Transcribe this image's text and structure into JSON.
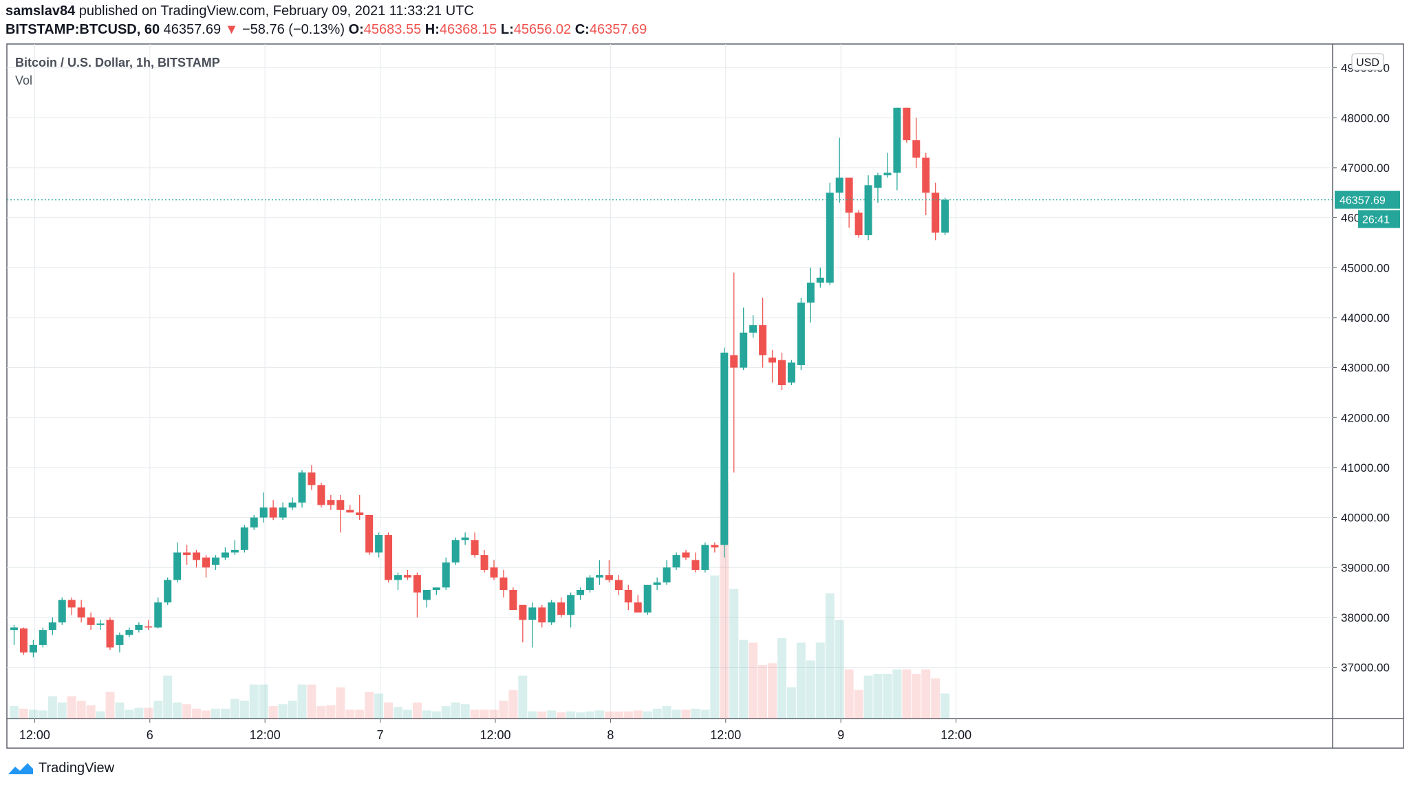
{
  "header": {
    "author": "samslav84",
    "published_text": "published on TradingView.com, February 09, 2021 11:33:21 UTC",
    "symbol": "BITSTAMP:BTCUSD, 60",
    "last": "46357.69",
    "change": "−58.76 (−0.13%)",
    "o_label": "O:",
    "o": "45683.55",
    "h_label": "H:",
    "h": "46368.15",
    "l_label": "L:",
    "l": "45656.02",
    "c_label": "C:",
    "c": "46357.69"
  },
  "legend": {
    "title": "Bitcoin / U.S. Dollar, 1h, BITSTAMP",
    "vol": "Vol"
  },
  "currency": "USD",
  "price_tag": "46357.69",
  "countdown": "26:41",
  "footer": {
    "brand": "TradingView"
  },
  "colors": {
    "up": "#26a69a",
    "down": "#ef5350",
    "grid": "#e6eaed",
    "text": "#131722"
  },
  "chart_data": {
    "type": "candlestick",
    "title": "Bitcoin / U.S. Dollar, 1h, BITSTAMP",
    "y_unit": "USD",
    "y_ticks": [
      37000,
      38000,
      39000,
      40000,
      41000,
      42000,
      43000,
      44000,
      45000,
      46000,
      47000,
      48000,
      49000
    ],
    "ylim": [
      36150,
      49500
    ],
    "x_ticks": [
      {
        "label": "12:00",
        "index": 2
      },
      {
        "label": "6",
        "index": 14
      },
      {
        "label": "12:00",
        "index": 26
      },
      {
        "label": "7",
        "index": 38
      },
      {
        "label": "12:00",
        "index": 50
      },
      {
        "label": "8",
        "index": 62
      },
      {
        "label": "12:00",
        "index": 74
      },
      {
        "label": "9",
        "index": 86
      },
      {
        "label": "12:00",
        "index": 98
      }
    ],
    "last_price": 46357.69,
    "grid": true,
    "candles": [
      {
        "o": 37750,
        "h": 37850,
        "l": 37450,
        "c": 37800
      },
      {
        "o": 37780,
        "h": 37800,
        "l": 37250,
        "c": 37300
      },
      {
        "o": 37300,
        "h": 37550,
        "l": 37200,
        "c": 37450
      },
      {
        "o": 37450,
        "h": 37800,
        "l": 37400,
        "c": 37750
      },
      {
        "o": 37750,
        "h": 38000,
        "l": 37650,
        "c": 37900
      },
      {
        "o": 37900,
        "h": 38400,
        "l": 37850,
        "c": 38350
      },
      {
        "o": 38350,
        "h": 38400,
        "l": 38050,
        "c": 38200
      },
      {
        "o": 38200,
        "h": 38350,
        "l": 37900,
        "c": 38000
      },
      {
        "o": 38000,
        "h": 38100,
        "l": 37750,
        "c": 37850
      },
      {
        "o": 37850,
        "h": 37950,
        "l": 37750,
        "c": 37880
      },
      {
        "o": 37950,
        "h": 38000,
        "l": 37350,
        "c": 37400
      },
      {
        "o": 37450,
        "h": 37700,
        "l": 37300,
        "c": 37650
      },
      {
        "o": 37650,
        "h": 37800,
        "l": 37600,
        "c": 37750
      },
      {
        "o": 37750,
        "h": 37900,
        "l": 37700,
        "c": 37850
      },
      {
        "o": 37820,
        "h": 37950,
        "l": 37750,
        "c": 37800
      },
      {
        "o": 37800,
        "h": 38400,
        "l": 37780,
        "c": 38300
      },
      {
        "o": 38300,
        "h": 38800,
        "l": 38250,
        "c": 38750
      },
      {
        "o": 38750,
        "h": 39500,
        "l": 38700,
        "c": 39300
      },
      {
        "o": 39300,
        "h": 39450,
        "l": 39050,
        "c": 39250
      },
      {
        "o": 39300,
        "h": 39350,
        "l": 39000,
        "c": 39150
      },
      {
        "o": 39200,
        "h": 39250,
        "l": 38800,
        "c": 39000
      },
      {
        "o": 39050,
        "h": 39250,
        "l": 38950,
        "c": 39200
      },
      {
        "o": 39200,
        "h": 39400,
        "l": 39150,
        "c": 39300
      },
      {
        "o": 39300,
        "h": 39550,
        "l": 39250,
        "c": 39350
      },
      {
        "o": 39350,
        "h": 39850,
        "l": 39300,
        "c": 39800
      },
      {
        "o": 39800,
        "h": 40050,
        "l": 39750,
        "c": 40000
      },
      {
        "o": 40000,
        "h": 40500,
        "l": 39900,
        "c": 40200
      },
      {
        "o": 40200,
        "h": 40350,
        "l": 39950,
        "c": 40000
      },
      {
        "o": 40000,
        "h": 40300,
        "l": 39950,
        "c": 40200
      },
      {
        "o": 40200,
        "h": 40400,
        "l": 40150,
        "c": 40300
      },
      {
        "o": 40300,
        "h": 40950,
        "l": 40200,
        "c": 40900
      },
      {
        "o": 40900,
        "h": 41050,
        "l": 40550,
        "c": 40650
      },
      {
        "o": 40650,
        "h": 40700,
        "l": 40200,
        "c": 40250
      },
      {
        "o": 40350,
        "h": 40450,
        "l": 40150,
        "c": 40250
      },
      {
        "o": 40350,
        "h": 40450,
        "l": 39700,
        "c": 40150
      },
      {
        "o": 40150,
        "h": 40250,
        "l": 40100,
        "c": 40100
      },
      {
        "o": 40100,
        "h": 40450,
        "l": 39950,
        "c": 40050
      },
      {
        "o": 40050,
        "h": 40050,
        "l": 39250,
        "c": 39300
      },
      {
        "o": 39300,
        "h": 39700,
        "l": 39200,
        "c": 39650
      },
      {
        "o": 39650,
        "h": 39700,
        "l": 38700,
        "c": 38750
      },
      {
        "o": 38750,
        "h": 38900,
        "l": 38550,
        "c": 38850
      },
      {
        "o": 38850,
        "h": 38950,
        "l": 38750,
        "c": 38800
      },
      {
        "o": 38850,
        "h": 38900,
        "l": 38000,
        "c": 38500
      },
      {
        "o": 38350,
        "h": 38500,
        "l": 38200,
        "c": 38550
      },
      {
        "o": 38550,
        "h": 38600,
        "l": 38450,
        "c": 38600
      },
      {
        "o": 38600,
        "h": 39200,
        "l": 38550,
        "c": 39100
      },
      {
        "o": 39100,
        "h": 39600,
        "l": 39050,
        "c": 39550
      },
      {
        "o": 39550,
        "h": 39700,
        "l": 39450,
        "c": 39600
      },
      {
        "o": 39550,
        "h": 39700,
        "l": 39200,
        "c": 39250
      },
      {
        "o": 39250,
        "h": 39350,
        "l": 38900,
        "c": 38950
      },
      {
        "o": 39000,
        "h": 39150,
        "l": 38750,
        "c": 38800
      },
      {
        "o": 38800,
        "h": 38950,
        "l": 38400,
        "c": 38550
      },
      {
        "o": 38550,
        "h": 38600,
        "l": 38150,
        "c": 38150
      },
      {
        "o": 38250,
        "h": 38250,
        "l": 37500,
        "c": 37950
      },
      {
        "o": 37950,
        "h": 38300,
        "l": 37400,
        "c": 38200
      },
      {
        "o": 38200,
        "h": 38250,
        "l": 37800,
        "c": 37900
      },
      {
        "o": 37900,
        "h": 38350,
        "l": 37850,
        "c": 38300
      },
      {
        "o": 38300,
        "h": 38400,
        "l": 38000,
        "c": 38050
      },
      {
        "o": 38050,
        "h": 38500,
        "l": 37800,
        "c": 38450
      },
      {
        "o": 38450,
        "h": 38600,
        "l": 38350,
        "c": 38550
      },
      {
        "o": 38550,
        "h": 38850,
        "l": 38500,
        "c": 38800
      },
      {
        "o": 38800,
        "h": 39150,
        "l": 38650,
        "c": 38850
      },
      {
        "o": 38850,
        "h": 39150,
        "l": 38700,
        "c": 38750
      },
      {
        "o": 38750,
        "h": 38850,
        "l": 38450,
        "c": 38550
      },
      {
        "o": 38550,
        "h": 38650,
        "l": 38150,
        "c": 38300
      },
      {
        "o": 38300,
        "h": 38450,
        "l": 38100,
        "c": 38100
      },
      {
        "o": 38100,
        "h": 38650,
        "l": 38050,
        "c": 38650
      },
      {
        "o": 38650,
        "h": 38800,
        "l": 38550,
        "c": 38700
      },
      {
        "o": 38700,
        "h": 39150,
        "l": 38650,
        "c": 39000
      },
      {
        "o": 39000,
        "h": 39300,
        "l": 38950,
        "c": 39250
      },
      {
        "o": 39300,
        "h": 39350,
        "l": 39150,
        "c": 39200
      },
      {
        "o": 39150,
        "h": 39300,
        "l": 38900,
        "c": 38950
      },
      {
        "o": 38950,
        "h": 39500,
        "l": 38900,
        "c": 39450
      },
      {
        "o": 39450,
        "h": 39500,
        "l": 39300,
        "c": 39400
      },
      {
        "o": 39450,
        "h": 43400,
        "l": 39200,
        "c": 43300
      },
      {
        "o": 43250,
        "h": 44900,
        "l": 40900,
        "c": 43000
      },
      {
        "o": 43000,
        "h": 44200,
        "l": 42950,
        "c": 43700
      },
      {
        "o": 43700,
        "h": 44050,
        "l": 43600,
        "c": 43850
      },
      {
        "o": 43850,
        "h": 44400,
        "l": 43000,
        "c": 43250
      },
      {
        "o": 43200,
        "h": 43350,
        "l": 42700,
        "c": 43100
      },
      {
        "o": 43150,
        "h": 43300,
        "l": 42550,
        "c": 42650
      },
      {
        "o": 42700,
        "h": 43150,
        "l": 42650,
        "c": 43100
      },
      {
        "o": 43050,
        "h": 44400,
        "l": 42950,
        "c": 44300
      },
      {
        "o": 44300,
        "h": 45000,
        "l": 43900,
        "c": 44700
      },
      {
        "o": 44700,
        "h": 45000,
        "l": 44600,
        "c": 44800
      },
      {
        "o": 44700,
        "h": 46700,
        "l": 44650,
        "c": 46500
      },
      {
        "o": 46500,
        "h": 47600,
        "l": 46300,
        "c": 46800
      },
      {
        "o": 46800,
        "h": 46800,
        "l": 45800,
        "c": 46100
      },
      {
        "o": 46100,
        "h": 46150,
        "l": 45600,
        "c": 45650
      },
      {
        "o": 45650,
        "h": 46850,
        "l": 45550,
        "c": 46650
      },
      {
        "o": 46600,
        "h": 46900,
        "l": 46300,
        "c": 46850
      },
      {
        "o": 46850,
        "h": 47300,
        "l": 46800,
        "c": 46900
      },
      {
        "o": 46900,
        "h": 48200,
        "l": 46550,
        "c": 48200
      },
      {
        "o": 48200,
        "h": 48200,
        "l": 47500,
        "c": 47550
      },
      {
        "o": 47550,
        "h": 48000,
        "l": 47000,
        "c": 47200
      },
      {
        "o": 47200,
        "h": 47300,
        "l": 46050,
        "c": 46500
      },
      {
        "o": 46500,
        "h": 46700,
        "l": 45550,
        "c": 45700
      },
      {
        "o": 45700,
        "h": 46400,
        "l": 45650,
        "c": 46360
      }
    ],
    "volume": [
      {
        "v": 0.14,
        "up": true
      },
      {
        "v": 0.11,
        "up": false
      },
      {
        "v": 0.1,
        "up": true
      },
      {
        "v": 0.09,
        "up": true
      },
      {
        "v": 0.25,
        "up": true
      },
      {
        "v": 0.18,
        "up": true
      },
      {
        "v": 0.25,
        "up": false
      },
      {
        "v": 0.2,
        "up": false
      },
      {
        "v": 0.15,
        "up": false
      },
      {
        "v": 0.08,
        "up": true
      },
      {
        "v": 0.3,
        "up": false
      },
      {
        "v": 0.18,
        "up": true
      },
      {
        "v": 0.1,
        "up": true
      },
      {
        "v": 0.12,
        "up": true
      },
      {
        "v": 0.12,
        "up": false
      },
      {
        "v": 0.2,
        "up": true
      },
      {
        "v": 0.48,
        "up": true
      },
      {
        "v": 0.18,
        "up": true
      },
      {
        "v": 0.16,
        "up": false
      },
      {
        "v": 0.11,
        "up": false
      },
      {
        "v": 0.09,
        "up": false
      },
      {
        "v": 0.11,
        "up": true
      },
      {
        "v": 0.11,
        "up": true
      },
      {
        "v": 0.22,
        "up": true
      },
      {
        "v": 0.2,
        "up": true
      },
      {
        "v": 0.38,
        "up": true
      },
      {
        "v": 0.38,
        "up": true
      },
      {
        "v": 0.14,
        "up": false
      },
      {
        "v": 0.16,
        "up": true
      },
      {
        "v": 0.2,
        "up": true
      },
      {
        "v": 0.38,
        "up": true
      },
      {
        "v": 0.38,
        "up": false
      },
      {
        "v": 0.14,
        "up": false
      },
      {
        "v": 0.15,
        "up": false
      },
      {
        "v": 0.35,
        "up": false
      },
      {
        "v": 0.1,
        "up": false
      },
      {
        "v": 0.1,
        "up": false
      },
      {
        "v": 0.3,
        "up": false
      },
      {
        "v": 0.28,
        "up": true
      },
      {
        "v": 0.18,
        "up": false
      },
      {
        "v": 0.13,
        "up": true
      },
      {
        "v": 0.1,
        "up": true
      },
      {
        "v": 0.18,
        "up": false
      },
      {
        "v": 0.09,
        "up": true
      },
      {
        "v": 0.08,
        "up": true
      },
      {
        "v": 0.14,
        "up": true
      },
      {
        "v": 0.18,
        "up": true
      },
      {
        "v": 0.16,
        "up": true
      },
      {
        "v": 0.1,
        "up": false
      },
      {
        "v": 0.1,
        "up": false
      },
      {
        "v": 0.1,
        "up": false
      },
      {
        "v": 0.2,
        "up": false
      },
      {
        "v": 0.32,
        "up": false
      },
      {
        "v": 0.48,
        "up": true
      },
      {
        "v": 0.08,
        "up": true
      },
      {
        "v": 0.08,
        "up": false
      },
      {
        "v": 0.09,
        "up": true
      },
      {
        "v": 0.07,
        "up": false
      },
      {
        "v": 0.08,
        "up": true
      },
      {
        "v": 0.07,
        "up": true
      },
      {
        "v": 0.08,
        "up": true
      },
      {
        "v": 0.09,
        "up": true
      },
      {
        "v": 0.08,
        "up": false
      },
      {
        "v": 0.08,
        "up": false
      },
      {
        "v": 0.08,
        "up": false
      },
      {
        "v": 0.09,
        "up": false
      },
      {
        "v": 0.08,
        "up": true
      },
      {
        "v": 0.11,
        "up": true
      },
      {
        "v": 0.14,
        "up": true
      },
      {
        "v": 0.1,
        "up": true
      },
      {
        "v": 0.1,
        "up": false
      },
      {
        "v": 0.11,
        "up": true
      },
      {
        "v": 0.1,
        "up": true
      },
      {
        "v": 1.6,
        "up": true
      },
      {
        "v": 2.66,
        "up": false
      },
      {
        "v": 1.45,
        "up": true
      },
      {
        "v": 0.88,
        "up": true
      },
      {
        "v": 0.85,
        "up": false
      },
      {
        "v": 0.6,
        "up": false
      },
      {
        "v": 0.62,
        "up": false
      },
      {
        "v": 0.9,
        "up": true
      },
      {
        "v": 0.35,
        "up": true
      },
      {
        "v": 0.85,
        "up": true
      },
      {
        "v": 0.65,
        "up": true
      },
      {
        "v": 0.85,
        "up": true
      },
      {
        "v": 1.4,
        "up": true
      },
      {
        "v": 1.1,
        "up": true
      },
      {
        "v": 0.55,
        "up": false
      },
      {
        "v": 0.32,
        "up": false
      },
      {
        "v": 0.48,
        "up": true
      },
      {
        "v": 0.5,
        "up": true
      },
      {
        "v": 0.5,
        "up": true
      },
      {
        "v": 0.55,
        "up": true
      },
      {
        "v": 0.55,
        "up": false
      },
      {
        "v": 0.5,
        "up": false
      },
      {
        "v": 0.55,
        "up": false
      },
      {
        "v": 0.45,
        "up": false
      },
      {
        "v": 0.28,
        "up": true
      }
    ]
  }
}
